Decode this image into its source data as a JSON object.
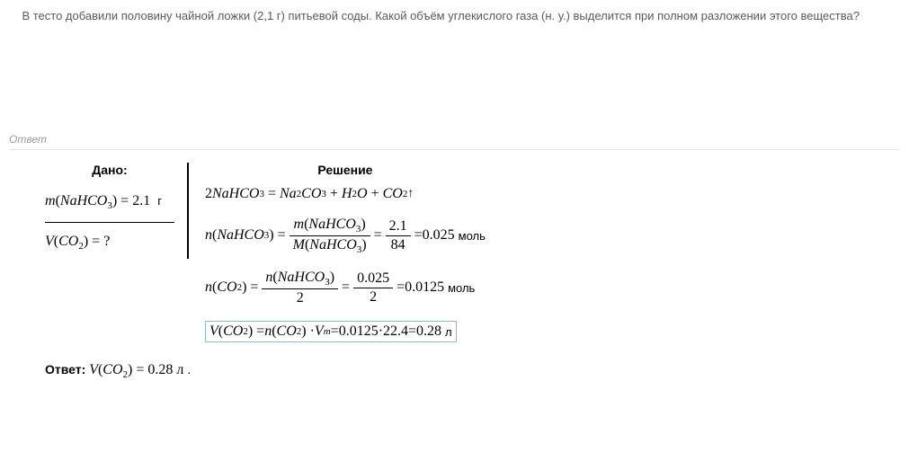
{
  "problem": {
    "text": "В тесто добавили половину чайной ложки (2,1 г) питьевой соды. Какой объём углекислого газа (н. у.) выделится при полном разложении этого вещества?",
    "text_color": "#5a5a5a",
    "font_size": 13
  },
  "answer_section_label": "Ответ",
  "given": {
    "header": "Дано:",
    "rows": [
      {
        "lhs_var": "m",
        "lhs_arg": "NaHCO",
        "lhs_sub": "3",
        "eq": "=",
        "rhs": "2.1",
        "unit": "г"
      },
      {
        "lhs_var": "V",
        "lhs_arg": "CO",
        "lhs_sub": "2",
        "eq": "=",
        "rhs": "?",
        "unit": ""
      }
    ]
  },
  "solution": {
    "header": "Решение",
    "reaction": {
      "lhs_coef": "2",
      "lhs": "NaHCO",
      "lhs_sub": "3",
      "eq": "=",
      "p1": "Na",
      "p1_sub": "2",
      "p1b": "CO",
      "p1b_sub": "3",
      "plus1": "+",
      "p2": "H",
      "p2_sub": "2",
      "p2b": "O",
      "plus2": "+",
      "p3": "CO",
      "p3_sub": "2",
      "arrow": "↑"
    },
    "step1": {
      "lhs_var": "n",
      "lhs_arg": "NaHCO",
      "lhs_sub": "3",
      "frac1_num_var": "m",
      "frac1_num_arg": "NaHCO",
      "frac1_num_sub": "3",
      "frac1_den_var": "M",
      "frac1_den_arg": "NaHCO",
      "frac1_den_sub": "3",
      "frac2_num": "2.1",
      "frac2_den": "84",
      "result": "0.025",
      "unit": "моль"
    },
    "step2": {
      "lhs_var": "n",
      "lhs_arg": "CO",
      "lhs_sub": "2",
      "frac1_num_var": "n",
      "frac1_num_arg": "NaHCO",
      "frac1_num_sub": "3",
      "frac1_den": "2",
      "frac2_num": "0.025",
      "frac2_den": "2",
      "result": "0.0125",
      "unit": "моль"
    },
    "step3": {
      "lhs_var": "V",
      "lhs_arg": "CO",
      "lhs_sub": "2",
      "mid_var": "n",
      "mid_arg": "CO",
      "mid_sub": "2",
      "mid2_var": "V",
      "mid2_sub": "m",
      "calc_a": "0.0125",
      "calc_b": "22.4",
      "result": "0.28",
      "unit": "л",
      "highlight_border": "#8fb8d8"
    }
  },
  "final_answer": {
    "label": "Ответ:",
    "var": "V",
    "arg": "CO",
    "sub": "2",
    "value": "0.28",
    "unit": "л"
  },
  "style": {
    "math_font": "Times New Roman",
    "body_font": "Arial",
    "rule_color": "#e5e5e5",
    "given_border_color": "#000000"
  }
}
